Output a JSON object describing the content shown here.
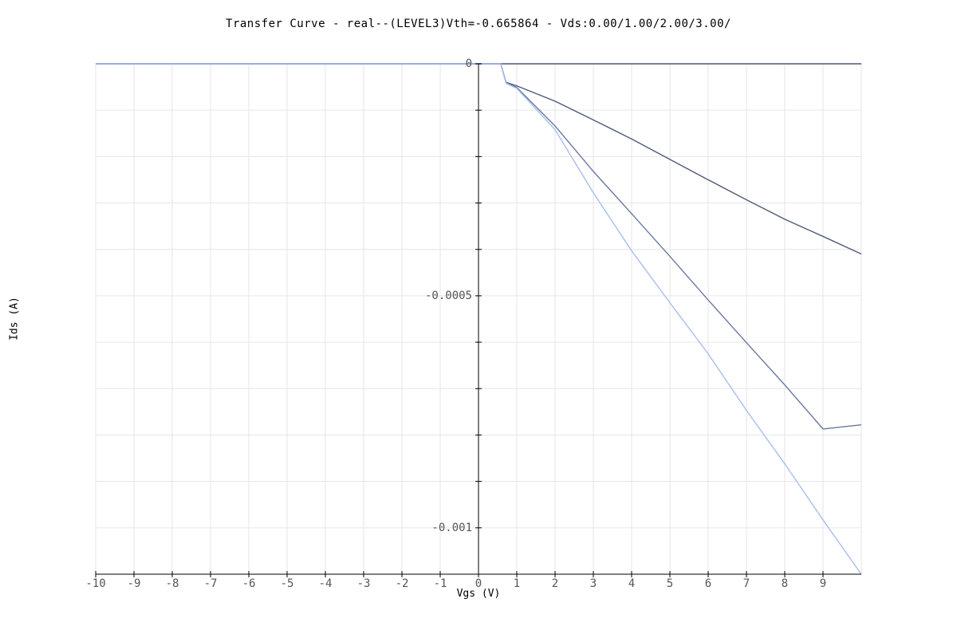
{
  "chart_data": {
    "type": "line",
    "title": "Transfer Curve - real--(LEVEL3)Vth=-0.665864 - Vds:0.00/1.00/2.00/3.00/",
    "xlabel": "Vgs (V)",
    "ylabel": "Ids (A)",
    "xlim": [
      -10,
      10
    ],
    "ylim": [
      -0.0011,
      0
    ],
    "xticks": [
      -10,
      -9,
      -8,
      -7,
      -6,
      -5,
      -4,
      -3,
      -2,
      -1,
      0,
      1,
      2,
      3,
      4,
      5,
      6,
      7,
      8,
      9
    ],
    "yticks": [
      {
        "value": 0,
        "label": "0"
      },
      {
        "value": -0.0005,
        "label": "-0.0005"
      },
      {
        "value": -0.001,
        "label": "-0.001"
      }
    ],
    "grid": true,
    "legend": "none",
    "colors": {
      "axis": "#000000",
      "grid": "#e6e6e6",
      "frame": "#cfcfcf",
      "tick_label": "#555555"
    },
    "series": [
      {
        "color": "#4a5570",
        "x": [
          -10,
          0,
          0.58,
          0.6,
          1,
          2,
          3,
          4,
          5,
          6,
          7,
          8,
          9,
          10
        ],
        "y": [
          0,
          0,
          0,
          0,
          0,
          0,
          0,
          0,
          0,
          0,
          0,
          0,
          0,
          0
        ]
      },
      {
        "color": "#4f5a78",
        "x": [
          -10,
          0,
          0.58,
          0.72,
          1,
          2,
          3,
          4,
          5,
          6,
          7,
          8,
          9,
          10
        ],
        "y": [
          0,
          0,
          0,
          -4e-05,
          -4.75e-05,
          -8.05e-05,
          -0.000121,
          -0.000162,
          -0.000206,
          -0.00025,
          -0.000293,
          -0.000335,
          -0.000372,
          -0.00041
        ]
      },
      {
        "color": "#6878a0",
        "x": [
          -10,
          0,
          0.58,
          0.72,
          1,
          2,
          3,
          4,
          5,
          6,
          7,
          8,
          9,
          10
        ],
        "y": [
          0,
          0,
          0,
          -4.1e-05,
          -5.1e-05,
          -0.000134,
          -0.000232,
          -0.000323,
          -0.000415,
          -0.000509,
          -0.000601,
          -0.000692,
          -0.000787,
          -0.000778
        ]
      },
      {
        "color": "#a8bdf0",
        "x": [
          -10,
          0,
          0.58,
          0.72,
          1,
          2,
          3,
          4,
          5,
          6,
          7,
          8,
          9,
          10
        ],
        "y": [
          0,
          0,
          0,
          -4.2e-05,
          -5.3e-05,
          -0.000142,
          -0.000278,
          -0.000403,
          -0.000515,
          -0.000625,
          -0.000747,
          -0.000862,
          -0.000983,
          -0.0011
        ]
      }
    ]
  }
}
